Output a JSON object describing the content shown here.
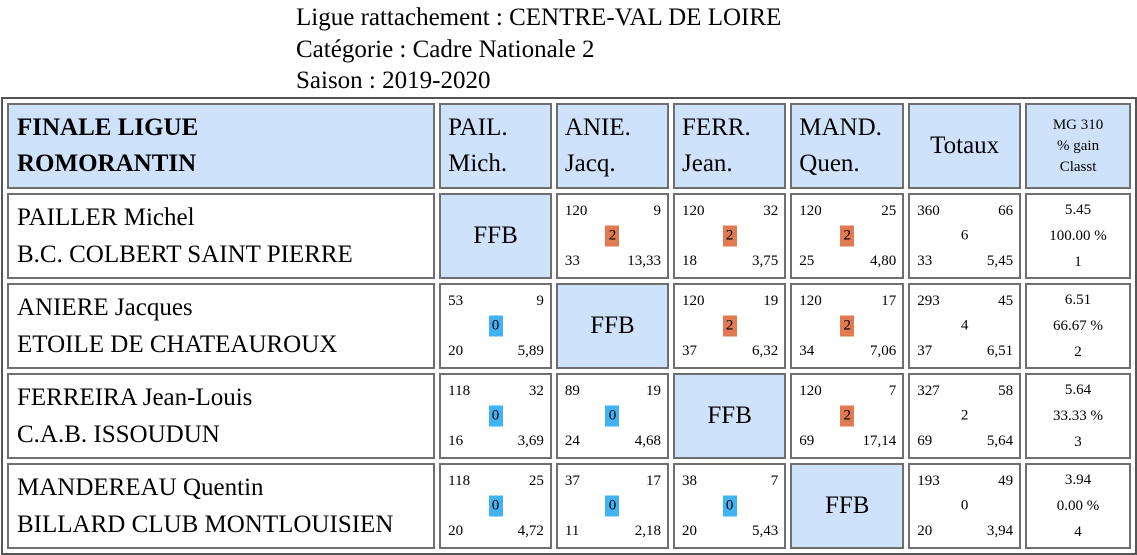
{
  "header": {
    "ligue": "Ligue rattachement : CENTRE-VAL DE LOIRE",
    "categorie": "Catégorie : Cadre Nationale 2",
    "saison": "Saison : 2019-2020"
  },
  "table": {
    "title_line1": "FINALE LIGUE",
    "title_line2": "ROMORANTIN",
    "columns": [
      {
        "l1": "PAIL.",
        "l2": "Mich."
      },
      {
        "l1": "ANIE.",
        "l2": "Jacq."
      },
      {
        "l1": "FERR.",
        "l2": "Jean."
      },
      {
        "l1": "MAND.",
        "l2": "Quen."
      }
    ],
    "totals_label": "Totaux",
    "mg_l1": "MG 310",
    "mg_l2": "% gain",
    "mg_l3": "Classt",
    "ffb_label": "FFB",
    "rows": [
      {
        "name": "PAILLER Michel",
        "club": "B.C. COLBERT SAINT PIERRE",
        "cells": [
          null,
          {
            "tl": "120",
            "tr": "9",
            "mid": "2",
            "bl": "33",
            "br": "13,33"
          },
          {
            "tl": "120",
            "tr": "32",
            "mid": "2",
            "bl": "18",
            "br": "3,75"
          },
          {
            "tl": "120",
            "tr": "25",
            "mid": "2",
            "bl": "25",
            "br": "4,80"
          }
        ],
        "total": {
          "tl": "360",
          "tr": "66",
          "mid": "6",
          "bl": "33",
          "br": "5,45"
        },
        "mg": {
          "avg": "5.45",
          "pct": "100.00 %",
          "rank": "1"
        }
      },
      {
        "name": "ANIERE Jacques",
        "club": "ETOILE DE CHATEAUROUX",
        "cells": [
          {
            "tl": "53",
            "tr": "9",
            "mid": "0",
            "bl": "20",
            "br": "5,89"
          },
          null,
          {
            "tl": "120",
            "tr": "19",
            "mid": "2",
            "bl": "37",
            "br": "6,32"
          },
          {
            "tl": "120",
            "tr": "17",
            "mid": "2",
            "bl": "34",
            "br": "7,06"
          }
        ],
        "total": {
          "tl": "293",
          "tr": "45",
          "mid": "4",
          "bl": "37",
          "br": "6,51"
        },
        "mg": {
          "avg": "6.51",
          "pct": "66.67 %",
          "rank": "2"
        }
      },
      {
        "name": "FERREIRA Jean-Louis",
        "club": "C.A.B. ISSOUDUN",
        "cells": [
          {
            "tl": "118",
            "tr": "32",
            "mid": "0",
            "bl": "16",
            "br": "3,69"
          },
          {
            "tl": "89",
            "tr": "19",
            "mid": "0",
            "bl": "24",
            "br": "4,68"
          },
          null,
          {
            "tl": "120",
            "tr": "7",
            "mid": "2",
            "bl": "69",
            "br": "17,14"
          }
        ],
        "total": {
          "tl": "327",
          "tr": "58",
          "mid": "2",
          "bl": "69",
          "br": "5,64"
        },
        "mg": {
          "avg": "5.64",
          "pct": "33.33 %",
          "rank": "3"
        }
      },
      {
        "name": "MANDEREAU Quentin",
        "club": "BILLARD CLUB MONTLOUISIEN",
        "cells": [
          {
            "tl": "118",
            "tr": "25",
            "mid": "0",
            "bl": "20",
            "br": "4,72"
          },
          {
            "tl": "37",
            "tr": "17",
            "mid": "0",
            "bl": "11",
            "br": "2,18"
          },
          {
            "tl": "38",
            "tr": "7",
            "mid": "0",
            "bl": "20",
            "br": "5,43"
          },
          null
        ],
        "total": {
          "tl": "193",
          "tr": "49",
          "mid": "0",
          "bl": "20",
          "br": "3,94"
        },
        "mg": {
          "avg": "3.94",
          "pct": "0.00 %",
          "rank": "4"
        }
      }
    ]
  },
  "colors": {
    "header_bg": "#cfe2fb",
    "win": "#e07a52",
    "loss": "#42b3f2"
  }
}
